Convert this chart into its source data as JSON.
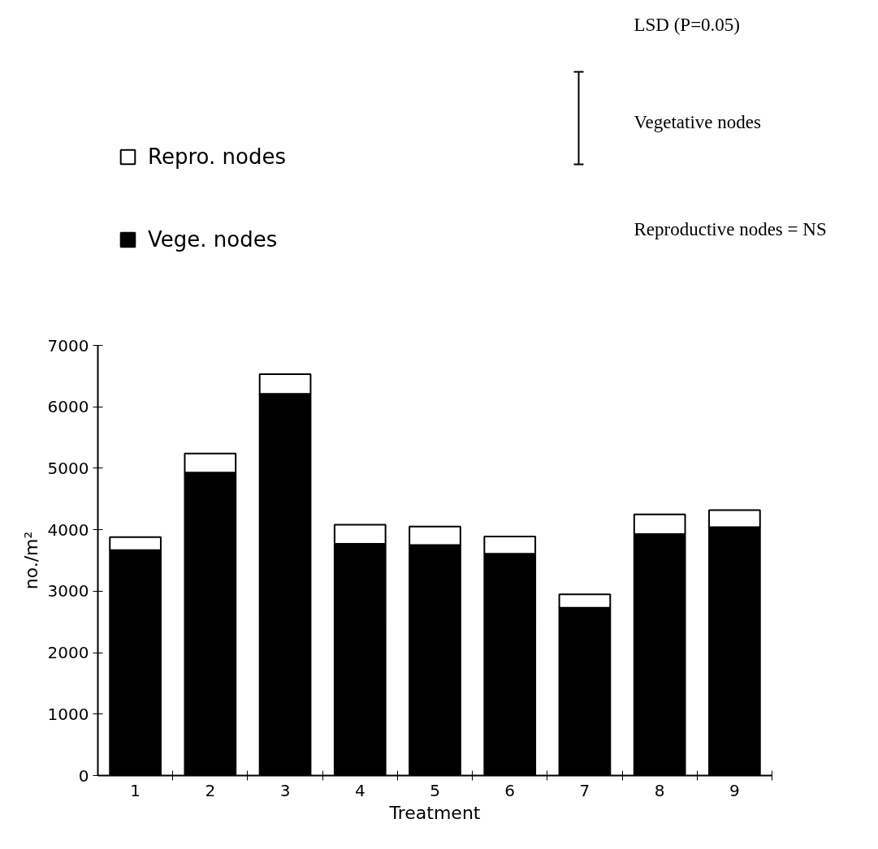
{
  "chart_data": {
    "type": "bar",
    "stacked": true,
    "categories": [
      "1",
      "2",
      "3",
      "4",
      "5",
      "6",
      "7",
      "8",
      "9"
    ],
    "series": [
      {
        "name": "Vege. nodes",
        "color": "#000000",
        "values": [
          3670,
          4930,
          6210,
          3770,
          3750,
          3610,
          2730,
          3930,
          4040
        ]
      },
      {
        "name": "Repro. nodes",
        "color": "#ffffff",
        "values": [
          210,
          310,
          320,
          310,
          300,
          280,
          220,
          320,
          280
        ]
      }
    ],
    "xlabel": "Treatment",
    "ylabel": "no./m²",
    "ylim": [
      0,
      7000
    ],
    "yticks": [
      0,
      1000,
      2000,
      3000,
      4000,
      5000,
      6000,
      7000
    ],
    "grid": false,
    "legend": "top left",
    "annotations": [
      "LSD (P=0.05)",
      "Vegetative nodes",
      "Reproductive nodes = NS"
    ]
  }
}
